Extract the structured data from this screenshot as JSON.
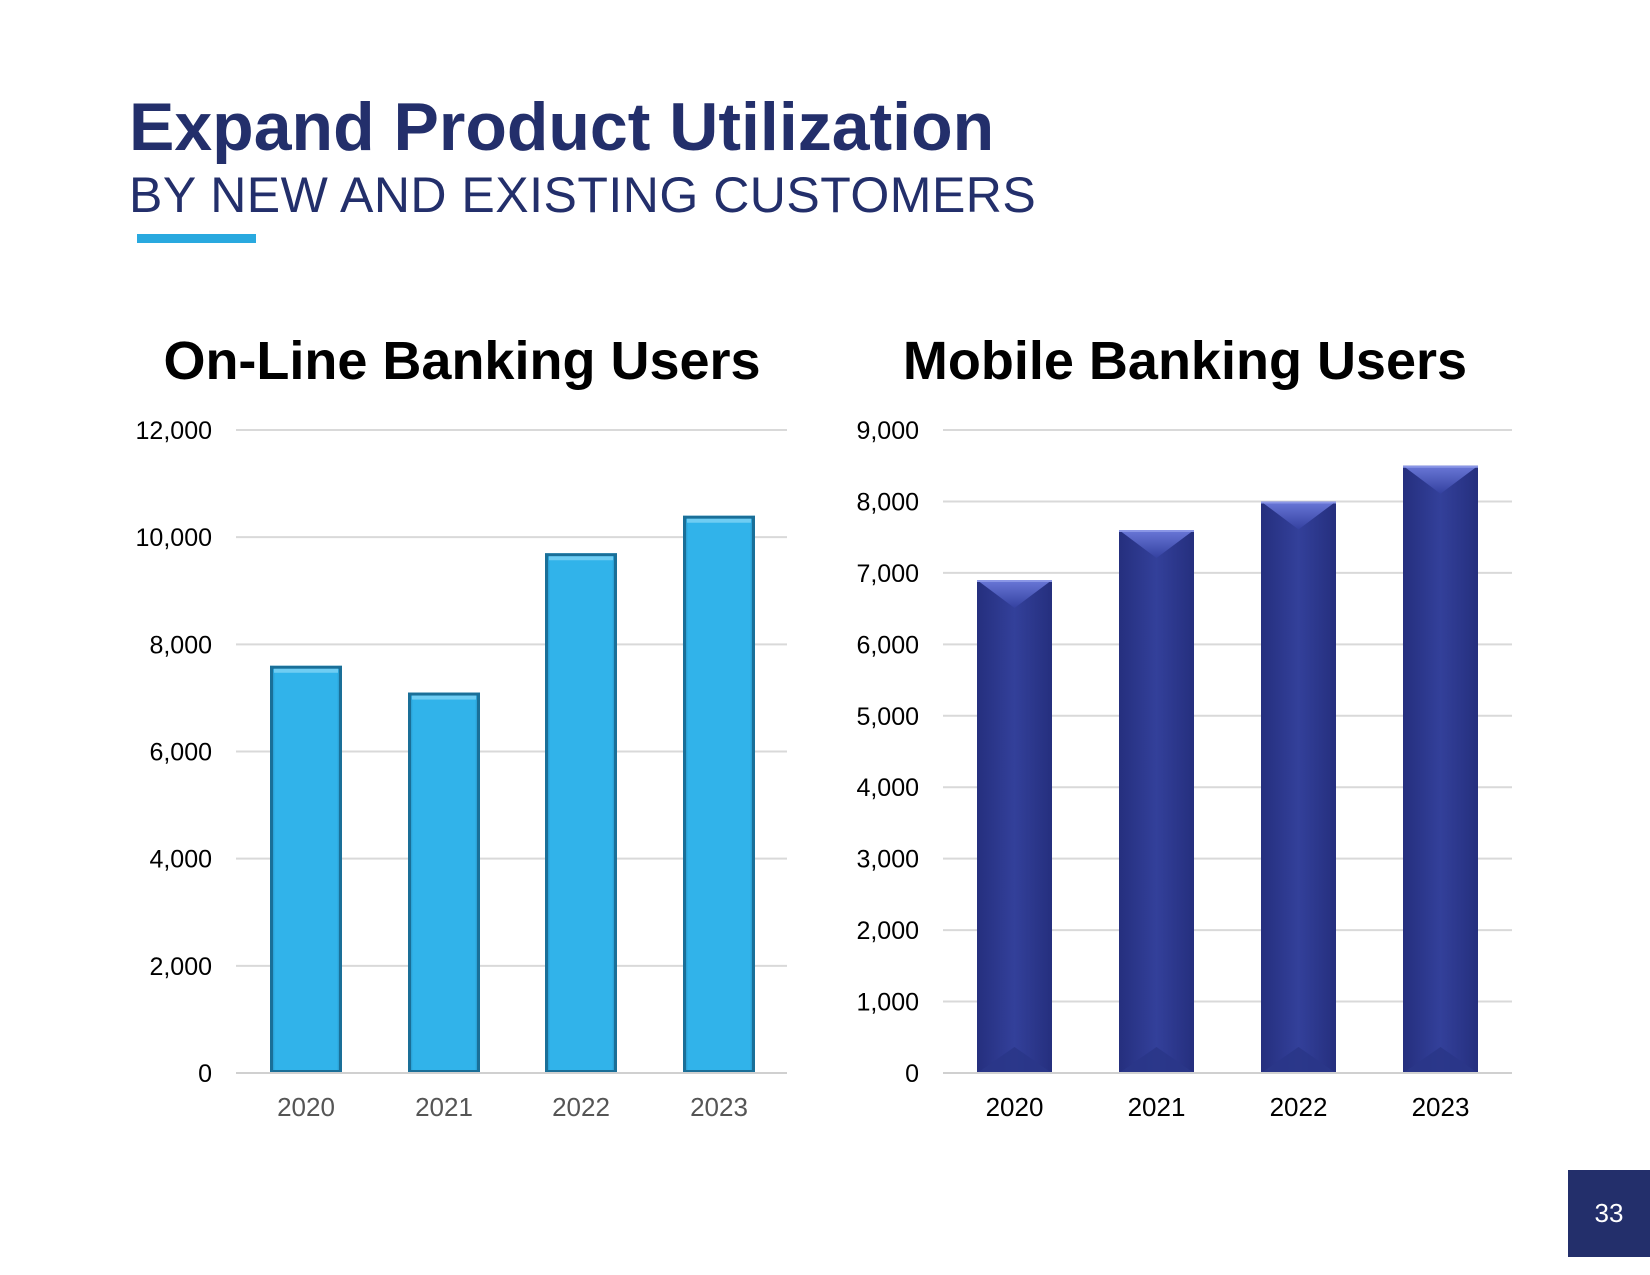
{
  "header": {
    "title": "Expand Product Utilization",
    "subtitle": "BY NEW AND EXISTING CUSTOMERS"
  },
  "page_number": "33",
  "colors": {
    "title": "#232f6b",
    "accent": "#29a9df",
    "online_bar": "#31b3ea",
    "mobile_bar": "#2e3a8f"
  },
  "chart_data": [
    {
      "type": "bar",
      "title": "On-Line Banking Users",
      "categories": [
        "2020",
        "2021",
        "2022",
        "2023"
      ],
      "values": [
        7600,
        7100,
        9700,
        10400
      ],
      "ylim": [
        0,
        12000
      ],
      "yticks": [
        0,
        2000,
        4000,
        6000,
        8000,
        10000,
        12000
      ],
      "ytick_labels": [
        "0",
        "2,000",
        "4,000",
        "6,000",
        "8,000",
        "10,000",
        "12,000"
      ],
      "xlabel": "",
      "ylabel": "",
      "grid": true,
      "legend": "none"
    },
    {
      "type": "bar",
      "title": "Mobile Banking Users",
      "categories": [
        "2020",
        "2021",
        "2022",
        "2023"
      ],
      "values": [
        6900,
        7600,
        8000,
        8500
      ],
      "ylim": [
        0,
        9000
      ],
      "yticks": [
        0,
        1000,
        2000,
        3000,
        4000,
        5000,
        6000,
        7000,
        8000,
        9000
      ],
      "ytick_labels": [
        "0",
        "1,000",
        "2,000",
        "3,000",
        "4,000",
        "5,000",
        "6,000",
        "7,000",
        "8,000",
        "9,000"
      ],
      "xlabel": "",
      "ylabel": "",
      "grid": true,
      "legend": "none"
    }
  ]
}
